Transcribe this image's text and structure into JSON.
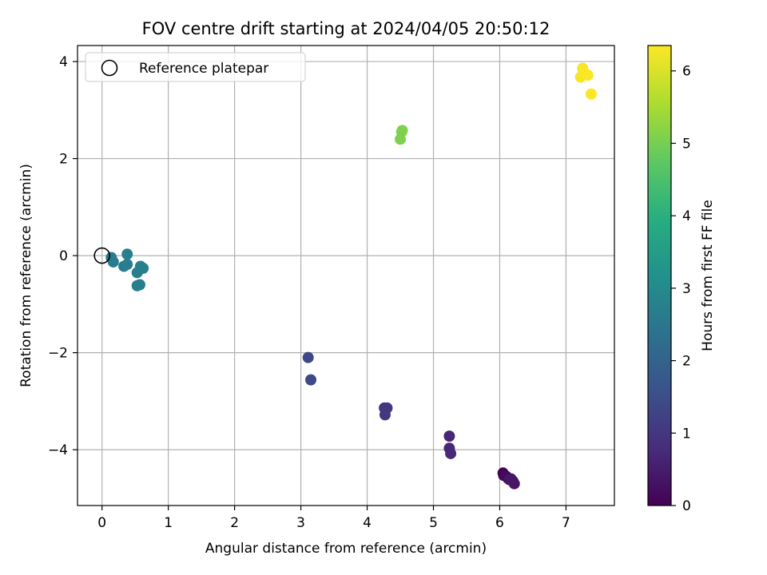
{
  "chart_data": {
    "type": "scatter",
    "title": "FOV centre drift starting at 2024/04/05 20:50:12",
    "xlabel": "Angular distance from reference (arcmin)",
    "ylabel": "Rotation from reference (arcmin)",
    "xlim": [
      -0.37,
      7.73
    ],
    "ylim": [
      -5.15,
      4.33
    ],
    "xticks": [
      0,
      1,
      2,
      3,
      4,
      5,
      6,
      7
    ],
    "yticks": [
      -4,
      -2,
      0,
      2,
      4
    ],
    "xtick_labels": [
      "0",
      "1",
      "2",
      "3",
      "4",
      "5",
      "6",
      "7"
    ],
    "ytick_labels": [
      "−4",
      "−2",
      "0",
      "2",
      "4"
    ],
    "grid": true,
    "legend": {
      "position": "top-left",
      "entries": [
        "Reference platepar"
      ]
    },
    "reference_point": {
      "x": 0,
      "y": 0
    },
    "colorbar": {
      "label": "Hours from first FF file",
      "min": 0,
      "max": 6.35,
      "colormap": "viridis",
      "ticks": [
        0,
        1,
        2,
        3,
        4,
        5,
        6
      ],
      "tick_labels": [
        "0",
        "1",
        "2",
        "3",
        "4",
        "5",
        "6"
      ]
    },
    "series": [
      {
        "points": [
          {
            "x": 6.05,
            "y": -4.48,
            "hours": 0.05
          },
          {
            "x": 6.06,
            "y": -4.53,
            "hours": 0.1
          },
          {
            "x": 6.1,
            "y": -4.55,
            "hours": 0.15
          },
          {
            "x": 6.13,
            "y": -4.6,
            "hours": 0.2
          },
          {
            "x": 6.17,
            "y": -4.6,
            "hours": 0.25
          },
          {
            "x": 6.2,
            "y": -4.65,
            "hours": 0.3
          },
          {
            "x": 6.22,
            "y": -4.7,
            "hours": 0.35
          },
          {
            "x": 6.15,
            "y": -4.62,
            "hours": 0.4
          },
          {
            "x": 5.24,
            "y": -3.72,
            "hours": 0.7
          },
          {
            "x": 5.24,
            "y": -3.97,
            "hours": 0.72
          },
          {
            "x": 5.26,
            "y": -4.08,
            "hours": 0.75
          },
          {
            "x": 4.26,
            "y": -3.14,
            "hours": 1.0
          },
          {
            "x": 4.3,
            "y": -3.14,
            "hours": 1.02
          },
          {
            "x": 4.27,
            "y": -3.28,
            "hours": 1.05
          },
          {
            "x": 3.11,
            "y": -2.1,
            "hours": 1.4
          },
          {
            "x": 3.15,
            "y": -2.56,
            "hours": 1.42
          },
          {
            "x": 0.14,
            "y": -0.04,
            "hours": 2.65
          },
          {
            "x": 0.17,
            "y": -0.13,
            "hours": 2.67
          },
          {
            "x": 0.33,
            "y": -0.22,
            "hours": 2.7
          },
          {
            "x": 0.38,
            "y": -0.18,
            "hours": 2.7
          },
          {
            "x": 0.38,
            "y": 0.03,
            "hours": 2.72
          },
          {
            "x": 0.53,
            "y": -0.35,
            "hours": 2.72
          },
          {
            "x": 0.58,
            "y": -0.22,
            "hours": 2.74
          },
          {
            "x": 0.62,
            "y": -0.26,
            "hours": 2.74
          },
          {
            "x": 0.53,
            "y": -0.62,
            "hours": 2.75
          },
          {
            "x": 0.57,
            "y": -0.6,
            "hours": 2.75
          },
          {
            "x": 4.5,
            "y": 2.4,
            "hours": 5.1
          },
          {
            "x": 4.52,
            "y": 2.55,
            "hours": 5.1
          },
          {
            "x": 4.53,
            "y": 2.58,
            "hours": 5.12
          },
          {
            "x": 7.25,
            "y": 3.86,
            "hours": 6.3
          },
          {
            "x": 7.22,
            "y": 3.68,
            "hours": 6.3
          },
          {
            "x": 7.28,
            "y": 3.76,
            "hours": 6.32
          },
          {
            "x": 7.33,
            "y": 3.72,
            "hours": 6.32
          },
          {
            "x": 7.38,
            "y": 3.33,
            "hours": 6.33
          }
        ]
      }
    ]
  }
}
